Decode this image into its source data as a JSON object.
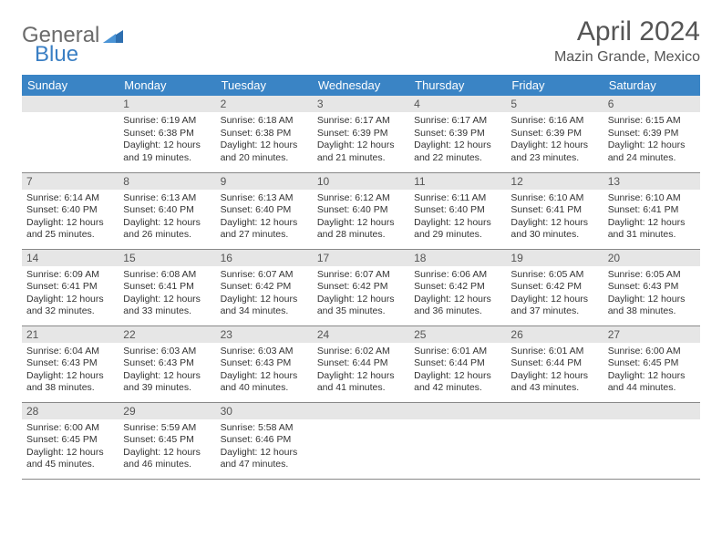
{
  "logo": {
    "part1": "General",
    "part2": "Blue"
  },
  "title": "April 2024",
  "location": "Mazin Grande, Mexico",
  "colors": {
    "header_bg": "#3a84c5",
    "header_text": "#ffffff",
    "daynum_bg": "#e6e6e6",
    "text": "#333333",
    "logo_gray": "#6b6b6b",
    "logo_blue": "#3a7fc4"
  },
  "weekdays": [
    "Sunday",
    "Monday",
    "Tuesday",
    "Wednesday",
    "Thursday",
    "Friday",
    "Saturday"
  ],
  "grid": [
    [
      {
        "empty": true
      },
      {
        "n": "1",
        "sr": "Sunrise: 6:19 AM",
        "ss": "Sunset: 6:38 PM",
        "dl": "Daylight: 12 hours and 19 minutes."
      },
      {
        "n": "2",
        "sr": "Sunrise: 6:18 AM",
        "ss": "Sunset: 6:38 PM",
        "dl": "Daylight: 12 hours and 20 minutes."
      },
      {
        "n": "3",
        "sr": "Sunrise: 6:17 AM",
        "ss": "Sunset: 6:39 PM",
        "dl": "Daylight: 12 hours and 21 minutes."
      },
      {
        "n": "4",
        "sr": "Sunrise: 6:17 AM",
        "ss": "Sunset: 6:39 PM",
        "dl": "Daylight: 12 hours and 22 minutes."
      },
      {
        "n": "5",
        "sr": "Sunrise: 6:16 AM",
        "ss": "Sunset: 6:39 PM",
        "dl": "Daylight: 12 hours and 23 minutes."
      },
      {
        "n": "6",
        "sr": "Sunrise: 6:15 AM",
        "ss": "Sunset: 6:39 PM",
        "dl": "Daylight: 12 hours and 24 minutes."
      }
    ],
    [
      {
        "n": "7",
        "sr": "Sunrise: 6:14 AM",
        "ss": "Sunset: 6:40 PM",
        "dl": "Daylight: 12 hours and 25 minutes."
      },
      {
        "n": "8",
        "sr": "Sunrise: 6:13 AM",
        "ss": "Sunset: 6:40 PM",
        "dl": "Daylight: 12 hours and 26 minutes."
      },
      {
        "n": "9",
        "sr": "Sunrise: 6:13 AM",
        "ss": "Sunset: 6:40 PM",
        "dl": "Daylight: 12 hours and 27 minutes."
      },
      {
        "n": "10",
        "sr": "Sunrise: 6:12 AM",
        "ss": "Sunset: 6:40 PM",
        "dl": "Daylight: 12 hours and 28 minutes."
      },
      {
        "n": "11",
        "sr": "Sunrise: 6:11 AM",
        "ss": "Sunset: 6:40 PM",
        "dl": "Daylight: 12 hours and 29 minutes."
      },
      {
        "n": "12",
        "sr": "Sunrise: 6:10 AM",
        "ss": "Sunset: 6:41 PM",
        "dl": "Daylight: 12 hours and 30 minutes."
      },
      {
        "n": "13",
        "sr": "Sunrise: 6:10 AM",
        "ss": "Sunset: 6:41 PM",
        "dl": "Daylight: 12 hours and 31 minutes."
      }
    ],
    [
      {
        "n": "14",
        "sr": "Sunrise: 6:09 AM",
        "ss": "Sunset: 6:41 PM",
        "dl": "Daylight: 12 hours and 32 minutes."
      },
      {
        "n": "15",
        "sr": "Sunrise: 6:08 AM",
        "ss": "Sunset: 6:41 PM",
        "dl": "Daylight: 12 hours and 33 minutes."
      },
      {
        "n": "16",
        "sr": "Sunrise: 6:07 AM",
        "ss": "Sunset: 6:42 PM",
        "dl": "Daylight: 12 hours and 34 minutes."
      },
      {
        "n": "17",
        "sr": "Sunrise: 6:07 AM",
        "ss": "Sunset: 6:42 PM",
        "dl": "Daylight: 12 hours and 35 minutes."
      },
      {
        "n": "18",
        "sr": "Sunrise: 6:06 AM",
        "ss": "Sunset: 6:42 PM",
        "dl": "Daylight: 12 hours and 36 minutes."
      },
      {
        "n": "19",
        "sr": "Sunrise: 6:05 AM",
        "ss": "Sunset: 6:42 PM",
        "dl": "Daylight: 12 hours and 37 minutes."
      },
      {
        "n": "20",
        "sr": "Sunrise: 6:05 AM",
        "ss": "Sunset: 6:43 PM",
        "dl": "Daylight: 12 hours and 38 minutes."
      }
    ],
    [
      {
        "n": "21",
        "sr": "Sunrise: 6:04 AM",
        "ss": "Sunset: 6:43 PM",
        "dl": "Daylight: 12 hours and 38 minutes."
      },
      {
        "n": "22",
        "sr": "Sunrise: 6:03 AM",
        "ss": "Sunset: 6:43 PM",
        "dl": "Daylight: 12 hours and 39 minutes."
      },
      {
        "n": "23",
        "sr": "Sunrise: 6:03 AM",
        "ss": "Sunset: 6:43 PM",
        "dl": "Daylight: 12 hours and 40 minutes."
      },
      {
        "n": "24",
        "sr": "Sunrise: 6:02 AM",
        "ss": "Sunset: 6:44 PM",
        "dl": "Daylight: 12 hours and 41 minutes."
      },
      {
        "n": "25",
        "sr": "Sunrise: 6:01 AM",
        "ss": "Sunset: 6:44 PM",
        "dl": "Daylight: 12 hours and 42 minutes."
      },
      {
        "n": "26",
        "sr": "Sunrise: 6:01 AM",
        "ss": "Sunset: 6:44 PM",
        "dl": "Daylight: 12 hours and 43 minutes."
      },
      {
        "n": "27",
        "sr": "Sunrise: 6:00 AM",
        "ss": "Sunset: 6:45 PM",
        "dl": "Daylight: 12 hours and 44 minutes."
      }
    ],
    [
      {
        "n": "28",
        "sr": "Sunrise: 6:00 AM",
        "ss": "Sunset: 6:45 PM",
        "dl": "Daylight: 12 hours and 45 minutes."
      },
      {
        "n": "29",
        "sr": "Sunrise: 5:59 AM",
        "ss": "Sunset: 6:45 PM",
        "dl": "Daylight: 12 hours and 46 minutes."
      },
      {
        "n": "30",
        "sr": "Sunrise: 5:58 AM",
        "ss": "Sunset: 6:46 PM",
        "dl": "Daylight: 12 hours and 47 minutes."
      },
      {
        "empty": true
      },
      {
        "empty": true
      },
      {
        "empty": true
      },
      {
        "empty": true
      }
    ]
  ]
}
